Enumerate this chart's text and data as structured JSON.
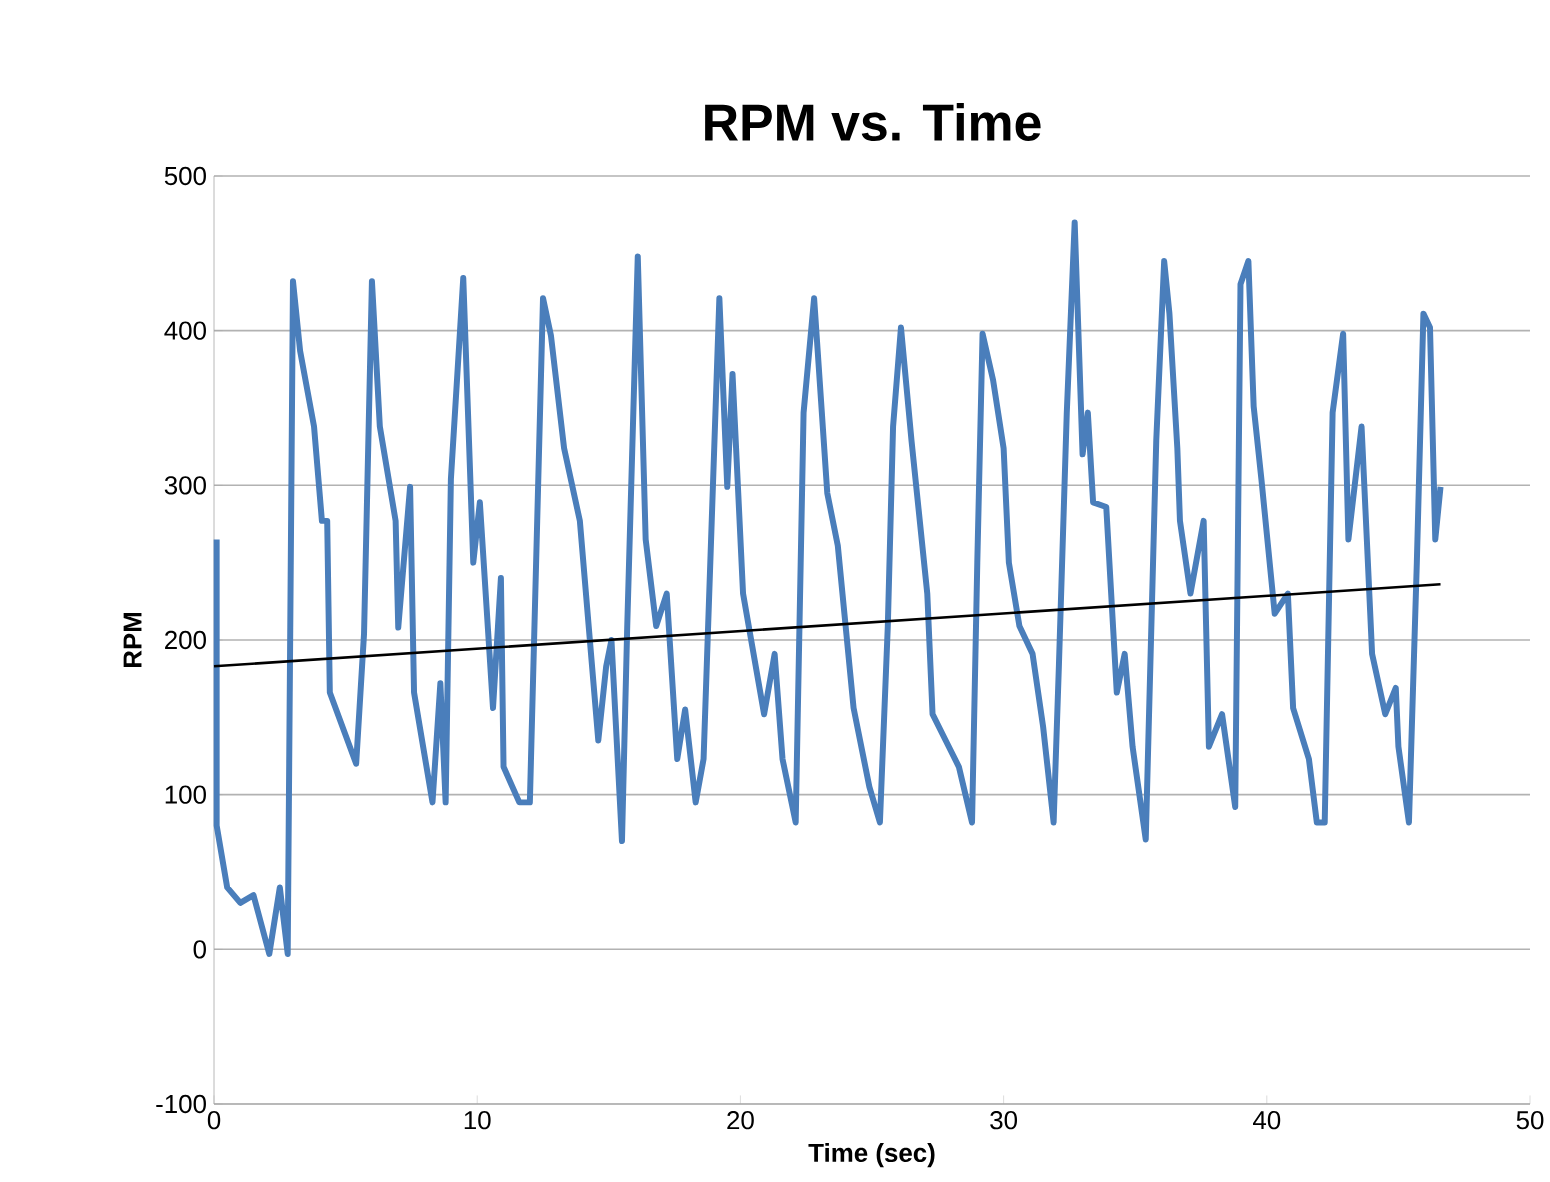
{
  "chart_data": {
    "type": "line",
    "title": "RPM vs. Time",
    "xlabel": "Time (sec)",
    "ylabel": "RPM",
    "xlim": [
      0,
      50
    ],
    "ylim": [
      -100,
      500
    ],
    "xticks": [
      0,
      10,
      20,
      30,
      40,
      50
    ],
    "yticks": [
      -100,
      0,
      100,
      200,
      300,
      400,
      500
    ],
    "grid": "y",
    "legend": false,
    "marker": "none",
    "line_style": "solid",
    "series": [
      {
        "color": "#4a7ebb",
        "x": [
          0.1,
          0.1,
          0.5,
          1.0,
          1.5,
          2.1,
          2.5,
          2.8,
          3.0,
          3.27,
          3.8,
          4.1,
          4.3,
          4.4,
          5.4,
          5.7,
          6.0,
          6.3,
          6.9,
          7.0,
          7.45,
          7.6,
          8.3,
          8.6,
          8.8,
          9.0,
          9.47,
          9.85,
          10.1,
          10.6,
          10.9,
          11.0,
          11.6,
          12.0,
          12.5,
          12.8,
          13.3,
          13.9,
          14.6,
          14.9,
          15.1,
          15.5,
          15.7,
          16.1,
          16.4,
          16.8,
          17.2,
          17.6,
          17.9,
          18.3,
          18.6,
          19.2,
          19.5,
          19.7,
          20.1,
          20.9,
          21.3,
          21.6,
          22.1,
          22.4,
          22.8,
          23.3,
          23.7,
          24.3,
          24.9,
          25.3,
          25.6,
          25.8,
          26.1,
          26.5,
          27.1,
          27.3,
          27.8,
          28.3,
          28.8,
          29.0,
          29.2,
          29.6,
          30.0,
          30.2,
          30.6,
          31.1,
          31.5,
          31.9,
          32.1,
          32.4,
          32.7,
          33.0,
          33.2,
          33.4,
          33.9,
          34.3,
          34.6,
          34.9,
          35.4,
          35.8,
          36.1,
          36.3,
          36.6,
          36.7,
          37.1,
          37.6,
          37.8,
          38.3,
          38.8,
          39.0,
          39.3,
          39.5,
          39.8,
          40.3,
          40.8,
          41.0,
          41.6,
          41.9,
          42.2,
          42.5,
          42.9,
          43.1,
          43.6,
          43.8,
          44.0,
          44.5,
          44.9,
          45.0,
          45.4,
          45.7,
          45.95,
          46.2,
          46.4,
          46.6
        ],
        "values": [
          265,
          80,
          40,
          30,
          35,
          -3,
          40,
          -3,
          432,
          387,
          338,
          277,
          277,
          166,
          120,
          204,
          432,
          338,
          277,
          208,
          299,
          166,
          95,
          172,
          95,
          304,
          434,
          250,
          289,
          156,
          240,
          118,
          95,
          95,
          421,
          397,
          324,
          277,
          135,
          183,
          200,
          70,
          209,
          448,
          265,
          209,
          230,
          123,
          155,
          95,
          123,
          421,
          299,
          372,
          230,
          152,
          191,
          123,
          82,
          347,
          421,
          295,
          261,
          156,
          105,
          82,
          209,
          338,
          402,
          329,
          230,
          152,
          135,
          118,
          82,
          250,
          398,
          368,
          324,
          250,
          209,
          191,
          144,
          82,
          183,
          347,
          470,
          320,
          347,
          289,
          286,
          166,
          191,
          131,
          71,
          329,
          445,
          411,
          324,
          277,
          230,
          277,
          131,
          152,
          92,
          430,
          445,
          351,
          303,
          217,
          230,
          156,
          123,
          82,
          82,
          347,
          398,
          265,
          338,
          265,
          191,
          152,
          169,
          131,
          82,
          250,
          411,
          402,
          265,
          299
        ]
      },
      {
        "type": "line",
        "color": "#000000",
        "x": [
          0,
          46.6
        ],
        "values": [
          183,
          236
        ]
      }
    ]
  }
}
